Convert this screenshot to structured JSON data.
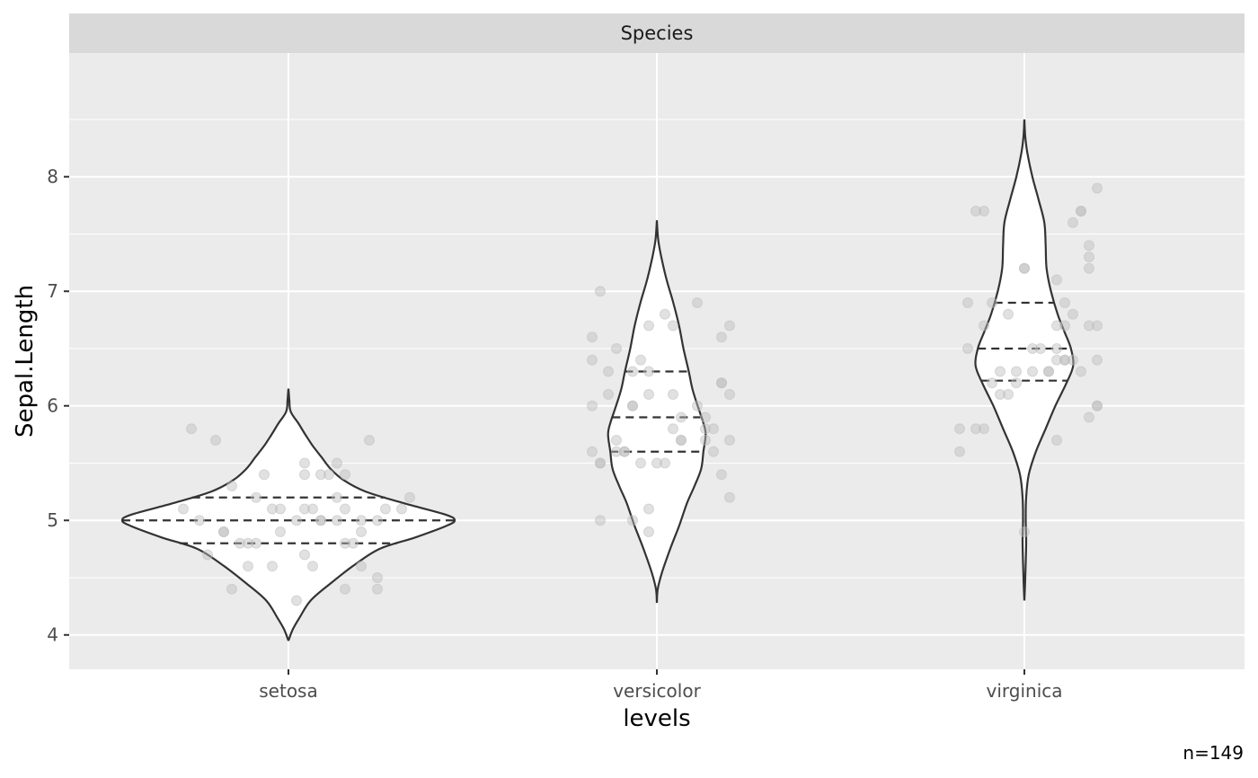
{
  "chart_data": {
    "type": "violin",
    "facet_label": "Species",
    "xlabel": "levels",
    "ylabel": "Sepal.Length",
    "caption": "n=149",
    "categories": [
      "setosa",
      "versicolor",
      "virginica"
    ],
    "ylim": [
      3.7,
      9.08
    ],
    "yticks": [
      4,
      5,
      6,
      7,
      8
    ],
    "grid": true,
    "colors": {
      "panel": "#ebebeb",
      "grid": "#ffffff",
      "strip": "#d9d9d9",
      "violin_fill": "#ffffff",
      "violin_line": "#333333",
      "point": "#bdbdbd"
    },
    "violins": [
      {
        "category": "setosa",
        "min": 3.95,
        "max": 6.15,
        "quantiles": [
          4.8,
          5.0,
          5.2
        ],
        "profile": [
          [
            3.95,
            0.0
          ],
          [
            4.05,
            0.1
          ],
          [
            4.15,
            0.25
          ],
          [
            4.3,
            0.5
          ],
          [
            4.45,
            0.95
          ],
          [
            4.6,
            1.45
          ],
          [
            4.75,
            2.05
          ],
          [
            4.85,
            2.85
          ],
          [
            4.95,
            3.55
          ],
          [
            5.0,
            3.75
          ],
          [
            5.05,
            3.55
          ],
          [
            5.15,
            2.6
          ],
          [
            5.25,
            1.75
          ],
          [
            5.35,
            1.25
          ],
          [
            5.45,
            0.95
          ],
          [
            5.55,
            0.75
          ],
          [
            5.65,
            0.55
          ],
          [
            5.75,
            0.38
          ],
          [
            5.85,
            0.22
          ],
          [
            5.95,
            0.05
          ],
          [
            6.05,
            0.02
          ],
          [
            6.15,
            0.0
          ]
        ]
      },
      {
        "category": "versicolor",
        "min": 4.28,
        "max": 7.62,
        "quantiles": [
          5.6,
          5.9,
          6.3
        ],
        "profile": [
          [
            4.28,
            0.0
          ],
          [
            4.4,
            0.02
          ],
          [
            4.55,
            0.12
          ],
          [
            4.75,
            0.3
          ],
          [
            4.95,
            0.5
          ],
          [
            5.15,
            0.68
          ],
          [
            5.3,
            0.85
          ],
          [
            5.45,
            1.0
          ],
          [
            5.6,
            1.05
          ],
          [
            5.75,
            1.1
          ],
          [
            5.85,
            1.05
          ],
          [
            6.0,
            0.92
          ],
          [
            6.15,
            0.8
          ],
          [
            6.3,
            0.72
          ],
          [
            6.5,
            0.6
          ],
          [
            6.7,
            0.5
          ],
          [
            6.9,
            0.37
          ],
          [
            7.1,
            0.22
          ],
          [
            7.3,
            0.1
          ],
          [
            7.45,
            0.03
          ],
          [
            7.62,
            0.0
          ]
        ]
      },
      {
        "category": "virginica",
        "min": 4.3,
        "max": 8.5,
        "quantiles": [
          6.22,
          6.5,
          6.9
        ],
        "profile": [
          [
            4.3,
            0.0
          ],
          [
            4.5,
            0.02
          ],
          [
            4.8,
            0.04
          ],
          [
            5.0,
            0.03
          ],
          [
            5.2,
            0.04
          ],
          [
            5.4,
            0.1
          ],
          [
            5.6,
            0.26
          ],
          [
            5.8,
            0.48
          ],
          [
            6.0,
            0.7
          ],
          [
            6.2,
            0.95
          ],
          [
            6.35,
            1.1
          ],
          [
            6.5,
            1.05
          ],
          [
            6.65,
            0.9
          ],
          [
            6.8,
            0.75
          ],
          [
            7.0,
            0.6
          ],
          [
            7.2,
            0.5
          ],
          [
            7.4,
            0.48
          ],
          [
            7.6,
            0.45
          ],
          [
            7.8,
            0.32
          ],
          [
            8.0,
            0.18
          ],
          [
            8.2,
            0.07
          ],
          [
            8.35,
            0.02
          ],
          [
            8.5,
            0.0
          ]
        ]
      }
    ],
    "points": [
      [
        [
          -1.3,
          5.1
        ],
        [
          -0.8,
          4.9
        ],
        [
          -1.0,
          4.7
        ],
        [
          -0.2,
          4.6
        ],
        [
          0.6,
          5.0
        ],
        [
          -0.3,
          5.4
        ],
        [
          0.3,
          4.6
        ],
        [
          -1.1,
          5.0
        ],
        [
          0.7,
          4.4
        ],
        [
          0.9,
          4.9
        ],
        [
          0.2,
          5.4
        ],
        [
          -0.4,
          4.8
        ],
        [
          0.8,
          4.8
        ],
        [
          0.1,
          4.3
        ],
        [
          -1.2,
          5.8
        ],
        [
          1.0,
          5.7
        ],
        [
          0.5,
          5.4
        ],
        [
          1.2,
          5.1
        ],
        [
          -0.9,
          5.7
        ],
        [
          -0.1,
          5.1
        ],
        [
          0.7,
          5.4
        ],
        [
          0.3,
          5.1
        ],
        [
          0.9,
          4.6
        ],
        [
          -0.2,
          5.1
        ],
        [
          0.7,
          4.8
        ],
        [
          1.1,
          5.0
        ],
        [
          0.4,
          5.0
        ],
        [
          -0.4,
          5.2
        ],
        [
          0.6,
          5.2
        ],
        [
          0.2,
          4.7
        ],
        [
          -0.6,
          4.8
        ],
        [
          0.4,
          5.4
        ],
        [
          1.5,
          5.2
        ],
        [
          0.6,
          5.5
        ],
        [
          -0.8,
          4.9
        ],
        [
          0.1,
          5.0
        ],
        [
          0.2,
          5.5
        ],
        [
          -0.1,
          4.9
        ],
        [
          1.1,
          4.4
        ],
        [
          1.4,
          5.1
        ],
        [
          0.9,
          5.0
        ],
        [
          1.1,
          4.5
        ],
        [
          -0.7,
          4.4
        ],
        [
          0.4,
          5.0
        ],
        [
          0.2,
          5.1
        ],
        [
          -0.5,
          4.8
        ],
        [
          0.7,
          5.1
        ],
        [
          -0.5,
          4.6
        ],
        [
          -0.7,
          5.3
        ]
      ],
      [
        [
          -0.7,
          7.0
        ],
        [
          -0.2,
          6.4
        ],
        [
          0.5,
          6.9
        ],
        [
          -0.7,
          5.5
        ],
        [
          -0.5,
          6.5
        ],
        [
          0.9,
          5.7
        ],
        [
          -0.1,
          6.3
        ],
        [
          -0.1,
          4.9
        ],
        [
          -0.8,
          6.6
        ],
        [
          0.9,
          5.2
        ],
        [
          -0.3,
          5.0
        ],
        [
          0.3,
          5.9
        ],
        [
          0.5,
          6.0
        ],
        [
          -0.6,
          6.1
        ],
        [
          -0.4,
          5.6
        ],
        [
          0.2,
          6.7
        ],
        [
          0.7,
          5.6
        ],
        [
          0.2,
          5.8
        ],
        [
          0.8,
          6.2
        ],
        [
          -0.5,
          5.6
        ],
        [
          0.6,
          5.9
        ],
        [
          -0.1,
          6.1
        ],
        [
          -0.3,
          6.3
        ],
        [
          0.9,
          6.1
        ],
        [
          -0.8,
          6.4
        ],
        [
          0.8,
          6.6
        ],
        [
          0.1,
          6.8
        ],
        [
          -0.1,
          6.7
        ],
        [
          -0.8,
          6.0
        ],
        [
          0.3,
          5.7
        ],
        [
          0.0,
          5.5
        ],
        [
          -0.7,
          5.5
        ],
        [
          0.7,
          5.8
        ],
        [
          -0.3,
          6.0
        ],
        [
          0.8,
          5.4
        ],
        [
          -0.3,
          6.0
        ],
        [
          0.9,
          6.7
        ],
        [
          -0.6,
          6.3
        ],
        [
          -0.8,
          5.6
        ],
        [
          -0.2,
          5.5
        ],
        [
          0.1,
          5.5
        ],
        [
          0.2,
          6.1
        ],
        [
          0.6,
          5.8
        ],
        [
          -0.7,
          5.0
        ],
        [
          -0.4,
          5.6
        ],
        [
          0.6,
          5.7
        ],
        [
          -0.5,
          5.7
        ],
        [
          0.8,
          6.2
        ],
        [
          -0.1,
          5.1
        ],
        [
          0.3,
          5.7
        ]
      ],
      [
        [
          0.3,
          6.3
        ],
        [
          -0.5,
          5.8
        ],
        [
          0.4,
          7.1
        ],
        [
          -0.1,
          6.3
        ],
        [
          0.1,
          6.5
        ],
        [
          0.6,
          7.6
        ],
        [
          0.0,
          4.9
        ],
        [
          0.8,
          7.3
        ],
        [
          0.5,
          6.7
        ],
        [
          0.8,
          7.2
        ],
        [
          0.4,
          6.5
        ],
        [
          0.9,
          6.4
        ],
        [
          -0.2,
          6.8
        ],
        [
          0.4,
          5.7
        ],
        [
          -0.8,
          5.8
        ],
        [
          0.5,
          6.4
        ],
        [
          -0.7,
          6.5
        ],
        [
          0.7,
          7.7
        ],
        [
          -0.6,
          7.7
        ],
        [
          0.9,
          6.0
        ],
        [
          -0.4,
          6.9
        ],
        [
          -0.8,
          5.6
        ],
        [
          -0.5,
          7.7
        ],
        [
          0.3,
          6.3
        ],
        [
          0.4,
          6.7
        ],
        [
          0.0,
          7.2
        ],
        [
          -0.1,
          6.2
        ],
        [
          -0.3,
          6.1
        ],
        [
          0.5,
          6.4
        ],
        [
          0.0,
          7.2
        ],
        [
          0.8,
          7.4
        ],
        [
          0.9,
          7.9
        ],
        [
          0.6,
          6.4
        ],
        [
          -0.3,
          6.3
        ],
        [
          -0.2,
          6.1
        ],
        [
          0.7,
          7.7
        ],
        [
          0.7,
          6.3
        ],
        [
          0.4,
          6.4
        ],
        [
          0.9,
          6.0
        ],
        [
          -0.7,
          6.9
        ],
        [
          0.8,
          6.7
        ],
        [
          0.5,
          6.9
        ],
        [
          -0.6,
          5.8
        ],
        [
          0.6,
          6.8
        ],
        [
          0.9,
          6.7
        ],
        [
          -0.5,
          6.7
        ],
        [
          0.1,
          6.3
        ],
        [
          0.2,
          6.5
        ],
        [
          -0.4,
          6.2
        ],
        [
          0.8,
          5.9
        ]
      ]
    ]
  }
}
